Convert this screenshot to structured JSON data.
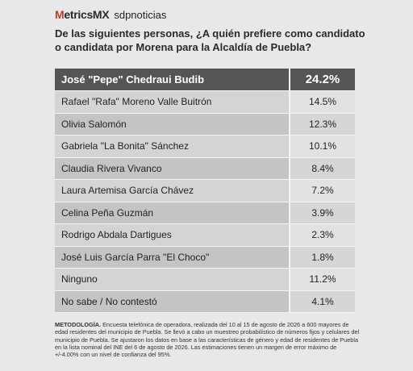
{
  "header": {
    "logo": "MetricsMX",
    "brand": "sdpnoticias"
  },
  "title": "De las siguientes personas, ¿A quién prefiere como candidato o candidata por Morena para la Alcaldía de Puebla?",
  "table": {
    "rows": [
      [
        "José \"Pepe\" Chedraui Budib",
        "24.2%"
      ],
      [
        "Rafael \"Rafa\" Moreno Valle Buitrón",
        "14.5%"
      ],
      [
        "Olivia Salomón",
        "12.3%"
      ],
      [
        "Gabriela \"La Bonita\" Sánchez",
        "10.1%"
      ],
      [
        "Claudia Rivera Vivanco",
        "8.4%"
      ],
      [
        "Laura Artemisa García Chávez",
        "7.2%"
      ],
      [
        "Celina Peña Guzmán",
        "3.9%"
      ],
      [
        "Rodrigo Abdala Dartigues",
        "2.3%"
      ],
      [
        "José Luis García Parra \"El Choco\"",
        "1.8%"
      ],
      [
        "Ninguno",
        "11.2%"
      ],
      [
        "No sabe / No contestó",
        "4.1%"
      ]
    ]
  },
  "methodology": {
    "label": "METODOLOGÍA.",
    "text": "Encuesta telefónica de operadora, realizada del 10 al 15 de agosto de 2026 a 600 mayores de edad residentes del municipio de Puebla. Se llevó a cabo un muestreo probabilístico de números fijos y celulares del municipio de Puebla. Se ajustaron los datos en base a las características de género y edad de residentes de Puebla en la lista nominal del INE del 6 de agosto de 2026. Las estimaciones tienen un margen de error máximo de +/-4.00% con un nivel de confianza del 95%."
  }
}
